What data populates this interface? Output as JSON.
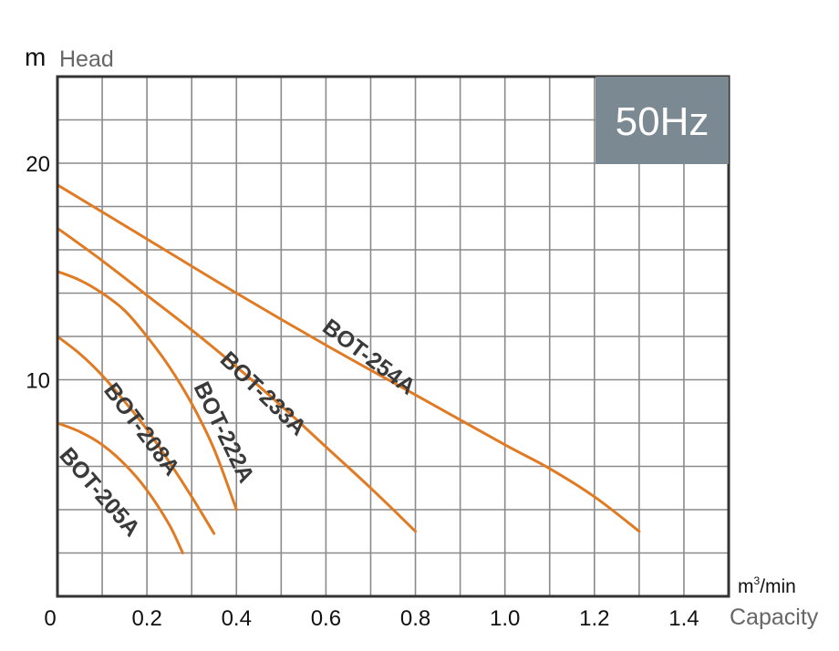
{
  "chart_data": {
    "type": "line",
    "frequency_badge": "50Hz",
    "y_unit": "m",
    "ylabel": "Head",
    "x_unit": "m3/min",
    "x_unit_base": "m",
    "x_unit_sup": "3",
    "x_unit_tail": "/min",
    "xlabel": "Capacity",
    "xlim": [
      0,
      1.5
    ],
    "ylim": [
      0,
      24
    ],
    "x_ticks": [
      "0",
      "0.2",
      "0.4",
      "0.6",
      "0.8",
      "1.0",
      "1.2",
      "1.4"
    ],
    "x_tick_values": [
      0,
      0.2,
      0.4,
      0.6,
      0.8,
      1.0,
      1.2,
      1.4
    ],
    "y_ticks": [
      "10",
      "20"
    ],
    "y_tick_values": [
      10,
      20
    ],
    "grid": true,
    "grid_step_x": 0.1,
    "grid_step_y": 2,
    "series_color": "#e07b24",
    "badge_color": "#7b8a92",
    "series": [
      {
        "name": "BOT-254A",
        "x": [
          0,
          0.2,
          0.4,
          0.6,
          0.8,
          1.0,
          1.1,
          1.2,
          1.3
        ],
        "y": [
          19.0,
          16.5,
          14.0,
          11.6,
          9.3,
          7.0,
          5.9,
          4.6,
          3.0
        ]
      },
      {
        "name": "BOT-233A",
        "x": [
          0,
          0.1,
          0.2,
          0.3,
          0.4,
          0.5,
          0.6,
          0.7,
          0.8
        ],
        "y": [
          17.0,
          15.5,
          13.9,
          12.3,
          10.6,
          8.8,
          6.9,
          5.0,
          3.0
        ]
      },
      {
        "name": "BOT-222A",
        "x": [
          0,
          0.05,
          0.1,
          0.15,
          0.2,
          0.25,
          0.3,
          0.35,
          0.4
        ],
        "y": [
          15.0,
          14.6,
          14.0,
          13.2,
          12.0,
          10.6,
          8.9,
          6.8,
          4.0
        ]
      },
      {
        "name": "BOT-208A",
        "x": [
          0,
          0.05,
          0.1,
          0.15,
          0.2,
          0.25,
          0.3,
          0.35
        ],
        "y": [
          12.0,
          11.2,
          10.2,
          9.0,
          7.7,
          6.2,
          4.6,
          2.9
        ]
      },
      {
        "name": "BOT-205A",
        "x": [
          0,
          0.05,
          0.1,
          0.15,
          0.2,
          0.25,
          0.28
        ],
        "y": [
          8.0,
          7.6,
          7.0,
          6.1,
          4.9,
          3.3,
          2.0
        ]
      }
    ]
  }
}
